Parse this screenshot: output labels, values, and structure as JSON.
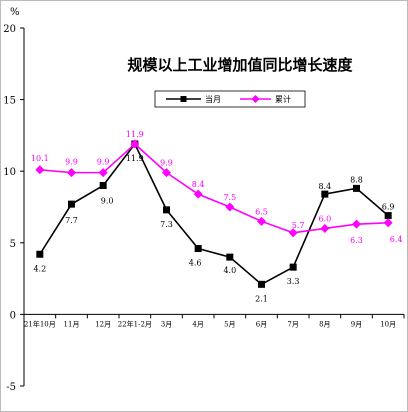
{
  "chart_data": {
    "type": "line",
    "title": "规模以上工业增加值同比增长速度",
    "ylabel": "%",
    "ylim": [
      -5,
      20
    ],
    "yticks": [
      -5,
      0,
      5,
      10,
      15,
      20
    ],
    "grid": false,
    "legend_position": "top-center",
    "categories": [
      "21年10月",
      "11月",
      "12月",
      "22年1-2月",
      "3月",
      "4月",
      "5月",
      "6月",
      "7月",
      "8月",
      "9月",
      "10月"
    ],
    "series": [
      {
        "name": "当月",
        "color": "#000000",
        "marker": "square",
        "values": [
          4.2,
          7.7,
          9.0,
          11.9,
          7.3,
          4.6,
          4.0,
          2.1,
          3.3,
          8.4,
          8.8,
          6.9
        ],
        "labels": [
          "4.2",
          "7.7",
          "9.0",
          "11.9",
          "7.3",
          "4.6",
          "4.0",
          "2.1",
          "3.3",
          "8.4",
          "8.8",
          "6.9"
        ]
      },
      {
        "name": "累计",
        "color": "#ff00ff",
        "marker": "diamond",
        "values": [
          10.1,
          9.9,
          9.9,
          11.9,
          9.9,
          8.4,
          7.5,
          6.5,
          5.7,
          6.0,
          6.3,
          6.4
        ],
        "labels": [
          "10.1",
          "9.9",
          "9.9",
          "11.9",
          "9.9",
          "8.4",
          "7.5",
          "6.5",
          "5.7",
          "6.0",
          "6.3",
          "6.4"
        ]
      }
    ]
  }
}
